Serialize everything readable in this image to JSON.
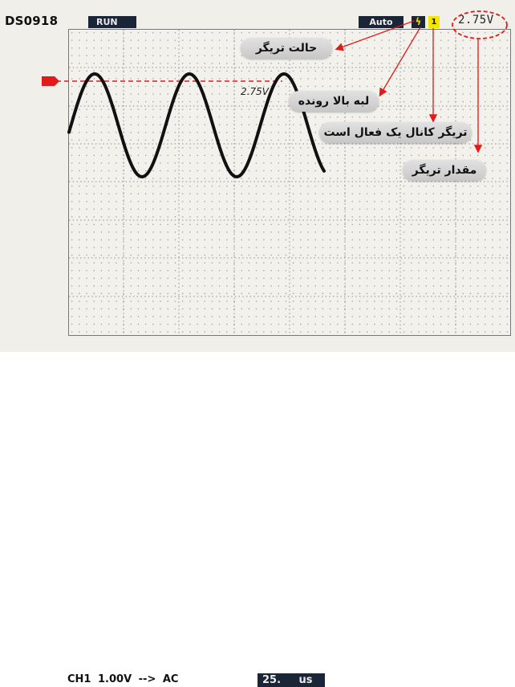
{
  "header": {
    "model": "DS0918",
    "run_state": "RUN",
    "trigger_mode": "Auto",
    "trigger_edge_symbol": "ϟ",
    "trigger_channel_symbol": "1",
    "trigger_level": "2.75V"
  },
  "waveform": {
    "level_label": "2.75V",
    "trigger_marker": "T"
  },
  "footer": {
    "channel_info": "CH1  1.00V --> AC",
    "timebase": "25. us"
  },
  "annotations": {
    "trigger_mode": "حالت تریگر",
    "rising_edge": "لبه بالا رونده",
    "channel_active": "تریگر کانال یک فعال است",
    "trigger_value": "مقدار تریگر"
  },
  "colors": {
    "accent_red": "#e21a1a",
    "bar_navy": "#1b2538",
    "trigger_yellow": "#f5e600"
  }
}
